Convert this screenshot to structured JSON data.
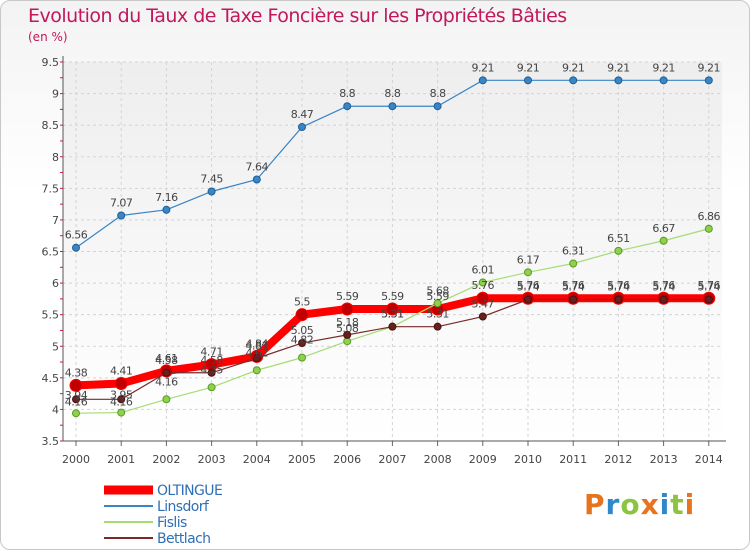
{
  "title": "Evolution du Taux de Taxe Foncière sur les Propriétés Bâties",
  "unit_label": "(en %)",
  "logo_text": "Proxiti",
  "chart_data": {
    "type": "line",
    "title": "Evolution du Taux de Taxe Foncière sur les Propriétés Bâties",
    "ylabel": "(en %)",
    "xlabel": "",
    "x": [
      "2000",
      "2001",
      "2002",
      "2003",
      "2004",
      "2005",
      "2006",
      "2007",
      "2008",
      "2009",
      "2010",
      "2011",
      "2012",
      "2013",
      "2014"
    ],
    "ylim": [
      3.5,
      9.5
    ],
    "yticks": [
      3.5,
      4,
      4.5,
      5,
      5.5,
      6,
      6.5,
      7,
      7.5,
      8,
      8.5,
      9,
      9.5
    ],
    "grid": true,
    "legend_position": "bottom-left",
    "series": [
      {
        "name": "OLTINGUE",
        "color": "#ff0000",
        "values": [
          4.38,
          4.41,
          4.61,
          4.71,
          4.84,
          5.5,
          5.59,
          5.59,
          5.59,
          5.76,
          5.76,
          5.76,
          5.76,
          5.76,
          5.76
        ],
        "labels": [
          "4.38",
          "4.41",
          "4.61",
          "4.71",
          "4.84",
          "5.5",
          "5.59",
          "5.59",
          "5.59",
          "5.76",
          "5.76",
          "5.76",
          "5.76",
          "5.76",
          "5.76"
        ]
      },
      {
        "name": "Linsdorf",
        "color": "#3a85c6",
        "values": [
          6.56,
          7.07,
          7.16,
          7.45,
          7.64,
          8.47,
          8.8,
          8.8,
          8.8,
          9.21,
          9.21,
          9.21,
          9.21,
          9.21,
          9.21
        ],
        "labels": [
          "6.56",
          "7.07",
          "7.16",
          "7.45",
          "7.64",
          "8.47",
          "8.8",
          "8.8",
          "8.8",
          "9.21",
          "9.21",
          "9.21",
          "9.21",
          "9.21",
          "9.21"
        ]
      },
      {
        "name": "Fislis",
        "color": "#8fd14f",
        "values": [
          3.94,
          3.95,
          4.16,
          4.35,
          4.62,
          4.82,
          5.08,
          5.31,
          5.68,
          6.01,
          6.17,
          6.31,
          6.51,
          6.67,
          6.86
        ],
        "labels": [
          "3.94",
          "3.95",
          "4.16",
          "4.35",
          "4.62",
          "4.82",
          "5.08",
          "5.31",
          "5.68",
          "6.01",
          "6.17",
          "6.31",
          "6.51",
          "6.67",
          "6.86"
        ]
      },
      {
        "name": "Bettlach",
        "color": "#7a2a2a",
        "values": [
          4.16,
          4.16,
          4.58,
          4.58,
          4.81,
          5.05,
          5.18,
          5.31,
          5.31,
          5.47,
          5.74,
          5.74,
          5.74,
          5.74,
          5.74
        ],
        "labels": [
          "4.16",
          "4.16",
          "4.58",
          "4.58",
          "4.81",
          "5.05",
          "5.18",
          "5.31",
          "5.31",
          "5.47",
          "5.74",
          "5.74",
          "5.74",
          "5.74",
          "5.74"
        ]
      }
    ]
  }
}
